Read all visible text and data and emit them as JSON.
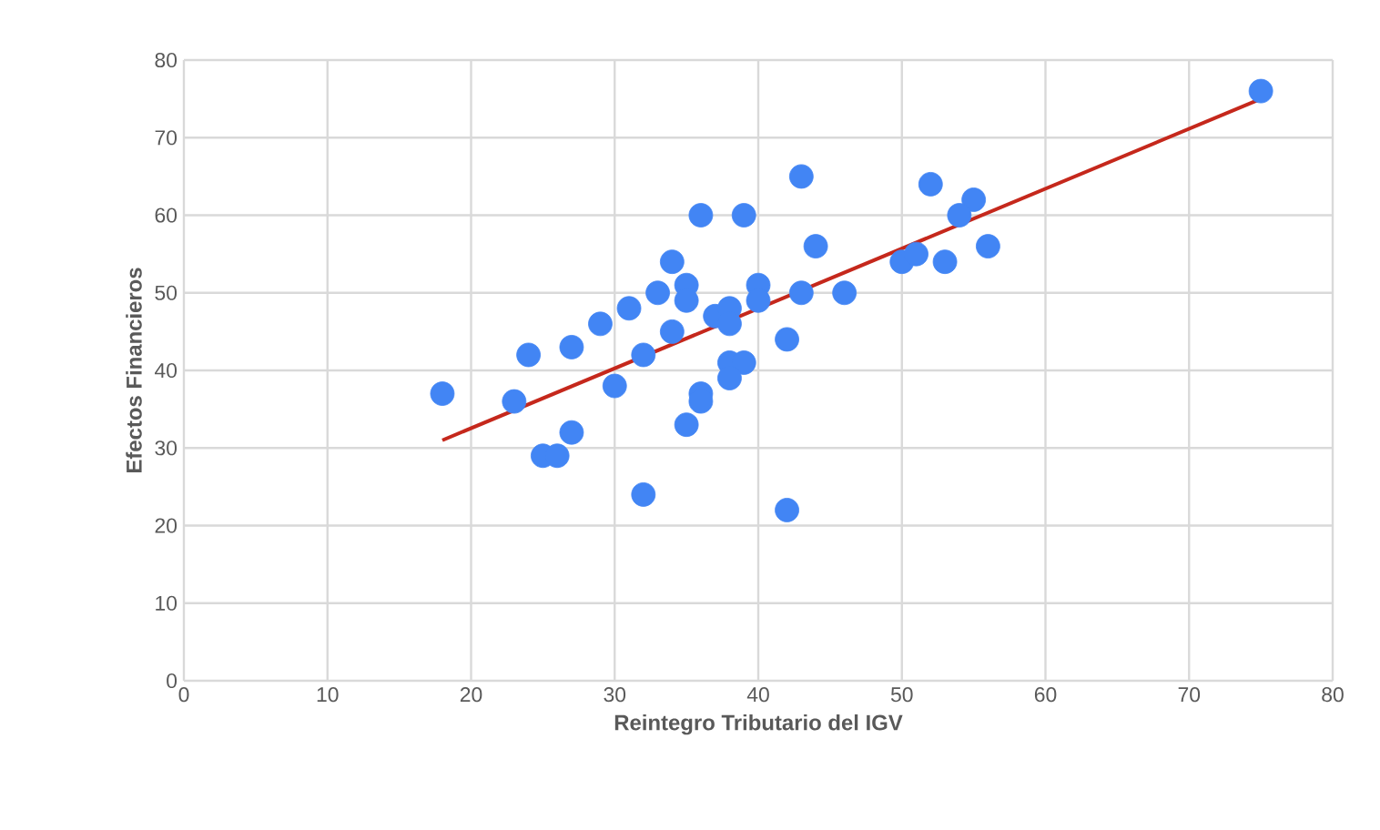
{
  "chart_data": {
    "type": "scatter",
    "xlabel": "Reintegro Tributario del IGV",
    "ylabel": "Efectos Financieros",
    "xlim": [
      0,
      80
    ],
    "ylim": [
      0,
      80
    ],
    "xticks": [
      0,
      10,
      20,
      30,
      40,
      50,
      60,
      70,
      80
    ],
    "yticks": [
      0,
      10,
      20,
      30,
      40,
      50,
      60,
      70,
      80
    ],
    "grid": true,
    "series": [
      {
        "marker": "circle",
        "color": "#4285f4",
        "x": [
          18,
          23,
          24,
          27,
          29,
          31,
          33,
          34,
          35,
          35,
          36,
          39,
          43,
          44,
          40,
          40,
          37,
          38,
          38,
          34,
          32,
          30,
          43,
          46,
          42,
          38,
          39,
          38,
          36,
          36,
          35,
          27,
          25,
          26,
          32,
          42,
          50,
          75,
          52,
          55,
          54,
          56,
          53,
          51
        ],
        "values": [
          37,
          36,
          42,
          43,
          46,
          48,
          50,
          54,
          51,
          49,
          60,
          60,
          65,
          56,
          51,
          49,
          47,
          48,
          46,
          45,
          42,
          38,
          50,
          50,
          44,
          41,
          41,
          39,
          37,
          36,
          33,
          32,
          29,
          29,
          24,
          22,
          54,
          76,
          64,
          62,
          60,
          56,
          54,
          55
        ]
      },
      {
        "type": "line",
        "marker": "none",
        "line_style": "solid",
        "color": "#c5281c",
        "x": [
          18,
          75
        ],
        "values": [
          31,
          75
        ]
      }
    ]
  }
}
